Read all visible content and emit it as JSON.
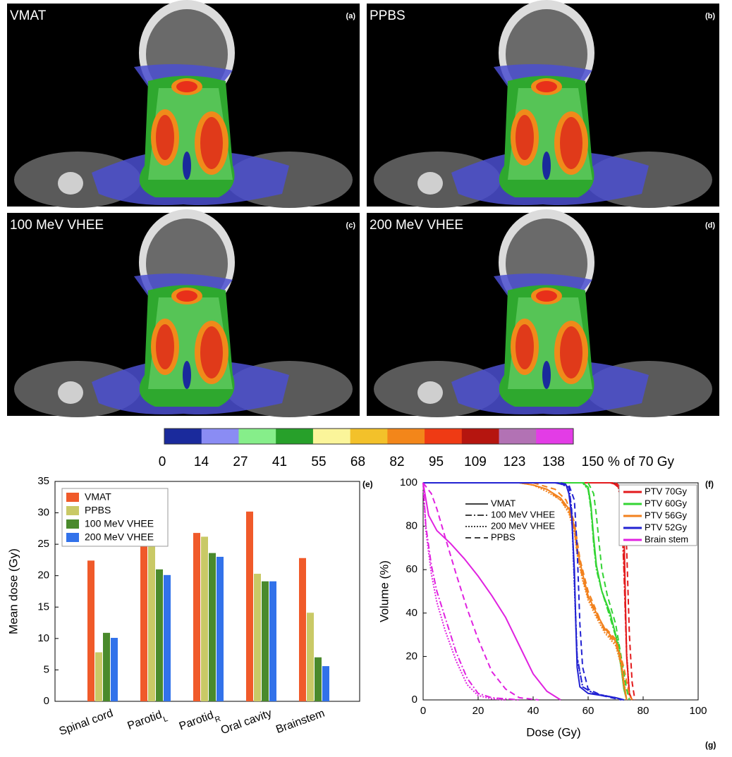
{
  "panels": [
    {
      "title": "VMAT",
      "label": "(a)"
    },
    {
      "title": "PPBS",
      "label": "(b)"
    },
    {
      "title": "100 MeV VHEE",
      "label": "(c)"
    },
    {
      "title": "200 MeV VHEE",
      "label": "(d)"
    }
  ],
  "colorbar": {
    "ticks": [
      0,
      14,
      27,
      41,
      55,
      68,
      82,
      95,
      109,
      123,
      138,
      150
    ],
    "unit_label": "% of 70 Gy",
    "colors": [
      "#1a2a9c",
      "#8a8cf4",
      "#86ee8a",
      "#27a02a",
      "#fbf59a",
      "#f3c12a",
      "#f3861a",
      "#ef3a14",
      "#b5150f",
      "#b272b4",
      "#e33ce6"
    ]
  },
  "corner_label": "(g)",
  "chart_data": [
    {
      "type": "bar",
      "panel_label": "(e)",
      "y_label": "Mean dose (Gy)",
      "categories": [
        "Spinal cord",
        "Parotid",
        "Parotid",
        "Oral cavity",
        "Brainstem"
      ],
      "category_subscripts": [
        null,
        "L",
        "R",
        null,
        null
      ],
      "ylim": [
        0,
        35
      ],
      "yticks": [
        0,
        5,
        10,
        15,
        20,
        25,
        30,
        35
      ],
      "legend": "upper-left",
      "series": [
        {
          "name": "VMAT",
          "color": "#f05a2a",
          "values": [
            22.4,
            25.9,
            26.8,
            30.2,
            22.8
          ]
        },
        {
          "name": "PPBS",
          "color": "#c9c966",
          "values": [
            7.8,
            24.9,
            26.2,
            20.3,
            14.1
          ]
        },
        {
          "name": "100 MeV VHEE",
          "color": "#4a8a2c",
          "values": [
            10.9,
            21.0,
            23.6,
            19.1,
            7.0
          ]
        },
        {
          "name": "200 MeV VHEE",
          "color": "#3272ea",
          "values": [
            10.1,
            20.1,
            23.0,
            19.1,
            5.6
          ]
        }
      ]
    },
    {
      "type": "line",
      "panel_label": "(f)",
      "x_label": "Dose (Gy)",
      "y_label": "Volume (%)",
      "xlim": [
        0,
        100
      ],
      "xticks": [
        0,
        20,
        40,
        60,
        80,
        100
      ],
      "ylim": [
        0,
        100
      ],
      "yticks": [
        0,
        20,
        40,
        60,
        80,
        100
      ],
      "plans": [
        {
          "name": "VMAT",
          "dash": "solid"
        },
        {
          "name": "100 MeV VHEE",
          "dash": "dashdot"
        },
        {
          "name": "200 MeV VHEE",
          "dash": "dotted"
        },
        {
          "name": "PPBS",
          "dash": "dashed"
        }
      ],
      "structures": [
        {
          "name": "PTV 70Gy",
          "color": "#e31a1c",
          "curves": [
            {
              "x": [
                0,
                68,
                71,
                72,
                73,
                73.5,
                74,
                75,
                76
              ],
              "values": [
                100,
                100,
                99,
                95,
                80,
                50,
                20,
                3,
                0
              ]
            },
            {
              "x": [
                0,
                69,
                71,
                72,
                73,
                74,
                75,
                76
              ],
              "values": [
                100,
                100,
                98,
                90,
                60,
                20,
                2,
                0
              ]
            },
            {
              "x": [
                0,
                69,
                71,
                72,
                73,
                74,
                75,
                76
              ],
              "values": [
                100,
                100,
                98,
                92,
                65,
                22,
                3,
                0
              ]
            },
            {
              "x": [
                0,
                70,
                72,
                73,
                74,
                75,
                76,
                77
              ],
              "values": [
                100,
                100,
                98,
                92,
                70,
                30,
                8,
                0
              ]
            }
          ]
        },
        {
          "name": "PTV 60Gy",
          "color": "#33d433",
          "curves": [
            {
              "x": [
                0,
                58,
                60,
                61,
                62,
                63,
                65,
                68,
                70,
                72,
                73,
                74
              ],
              "values": [
                100,
                100,
                98,
                90,
                75,
                62,
                50,
                40,
                30,
                15,
                5,
                0
              ]
            },
            {
              "x": [
                0,
                58,
                60,
                61,
                62,
                63,
                65,
                68,
                71,
                73,
                74
              ],
              "values": [
                100,
                100,
                97,
                88,
                72,
                60,
                50,
                38,
                25,
                8,
                0
              ]
            },
            {
              "x": [
                0,
                58,
                60,
                61,
                62,
                63,
                65,
                68,
                71,
                73,
                74
              ],
              "values": [
                100,
                100,
                97,
                89,
                73,
                61,
                50,
                39,
                26,
                9,
                0
              ]
            },
            {
              "x": [
                0,
                60,
                62,
                63,
                64,
                65,
                67,
                70,
                72,
                74,
                75
              ],
              "values": [
                100,
                100,
                95,
                85,
                72,
                60,
                48,
                35,
                20,
                5,
                0
              ]
            }
          ]
        },
        {
          "name": "PTV 56Gy",
          "color": "#f2821e",
          "curves": [
            {
              "x": [
                0,
                35,
                40,
                45,
                50,
                53,
                55,
                56,
                58,
                60,
                63,
                66,
                70,
                72,
                73,
                74
              ],
              "values": [
                100,
                100,
                99,
                97,
                93,
                88,
                80,
                70,
                58,
                48,
                40,
                33,
                27,
                18,
                8,
                0
              ]
            },
            {
              "x": [
                0,
                35,
                40,
                45,
                50,
                53,
                55,
                56,
                58,
                60,
                63,
                66,
                70,
                72,
                73,
                74
              ],
              "values": [
                100,
                100,
                99,
                97,
                92,
                87,
                78,
                68,
                56,
                47,
                39,
                32,
                26,
                17,
                7,
                0
              ]
            },
            {
              "x": [
                0,
                35,
                40,
                45,
                50,
                53,
                55,
                56,
                58,
                60,
                63,
                66,
                70,
                72,
                73,
                74
              ],
              "values": [
                100,
                100,
                99,
                96,
                92,
                86,
                77,
                67,
                55,
                46,
                38,
                31,
                25,
                16,
                6,
                0
              ]
            },
            {
              "x": [
                0,
                40,
                48,
                52,
                55,
                57,
                60,
                65,
                70,
                73,
                75,
                76
              ],
              "values": [
                100,
                100,
                97,
                92,
                82,
                65,
                50,
                35,
                28,
                15,
                2,
                0
              ]
            }
          ]
        },
        {
          "name": "PTV 52Gy",
          "color": "#2222d2",
          "curves": [
            {
              "x": [
                0,
                48,
                52,
                53,
                54,
                55,
                55.5,
                56,
                57,
                60,
                65,
                70,
                73
              ],
              "values": [
                100,
                100,
                99,
                95,
                85,
                60,
                35,
                15,
                6,
                3,
                2,
                1,
                0
              ]
            },
            {
              "x": [
                0,
                49,
                53,
                54,
                55,
                56,
                58,
                62,
                70,
                73
              ],
              "values": [
                100,
                100,
                98,
                88,
                55,
                20,
                6,
                3,
                1,
                0
              ]
            },
            {
              "x": [
                0,
                49,
                53,
                54,
                55,
                56,
                58,
                62,
                70,
                73
              ],
              "values": [
                100,
                100,
                98,
                87,
                53,
                19,
                6,
                3,
                1,
                0
              ]
            },
            {
              "x": [
                0,
                50,
                53,
                55,
                56,
                57,
                58,
                60,
                65,
                72
              ],
              "values": [
                100,
                100,
                99,
                92,
                70,
                35,
                15,
                5,
                2,
                0
              ]
            }
          ]
        },
        {
          "name": "Brain stem",
          "color": "#e022e0",
          "curves": [
            {
              "x": [
                0,
                2,
                5,
                10,
                15,
                20,
                25,
                30,
                35,
                40,
                45,
                50
              ],
              "values": [
                100,
                85,
                78,
                72,
                65,
                57,
                48,
                38,
                25,
                12,
                4,
                0
              ]
            },
            {
              "x": [
                0,
                1,
                3,
                5,
                8,
                12,
                16,
                20,
                25,
                35
              ],
              "values": [
                100,
                80,
                62,
                50,
                38,
                22,
                10,
                3,
                1,
                0
              ]
            },
            {
              "x": [
                0,
                1,
                3,
                5,
                8,
                12,
                16,
                20,
                25,
                30
              ],
              "values": [
                100,
                78,
                58,
                45,
                32,
                18,
                7,
                2,
                0.5,
                0
              ]
            },
            {
              "x": [
                0,
                3,
                5,
                8,
                12,
                16,
                20,
                25,
                30,
                35,
                42
              ],
              "values": [
                100,
                95,
                88,
                75,
                58,
                42,
                28,
                13,
                5,
                1,
                0
              ]
            }
          ]
        }
      ]
    }
  ]
}
